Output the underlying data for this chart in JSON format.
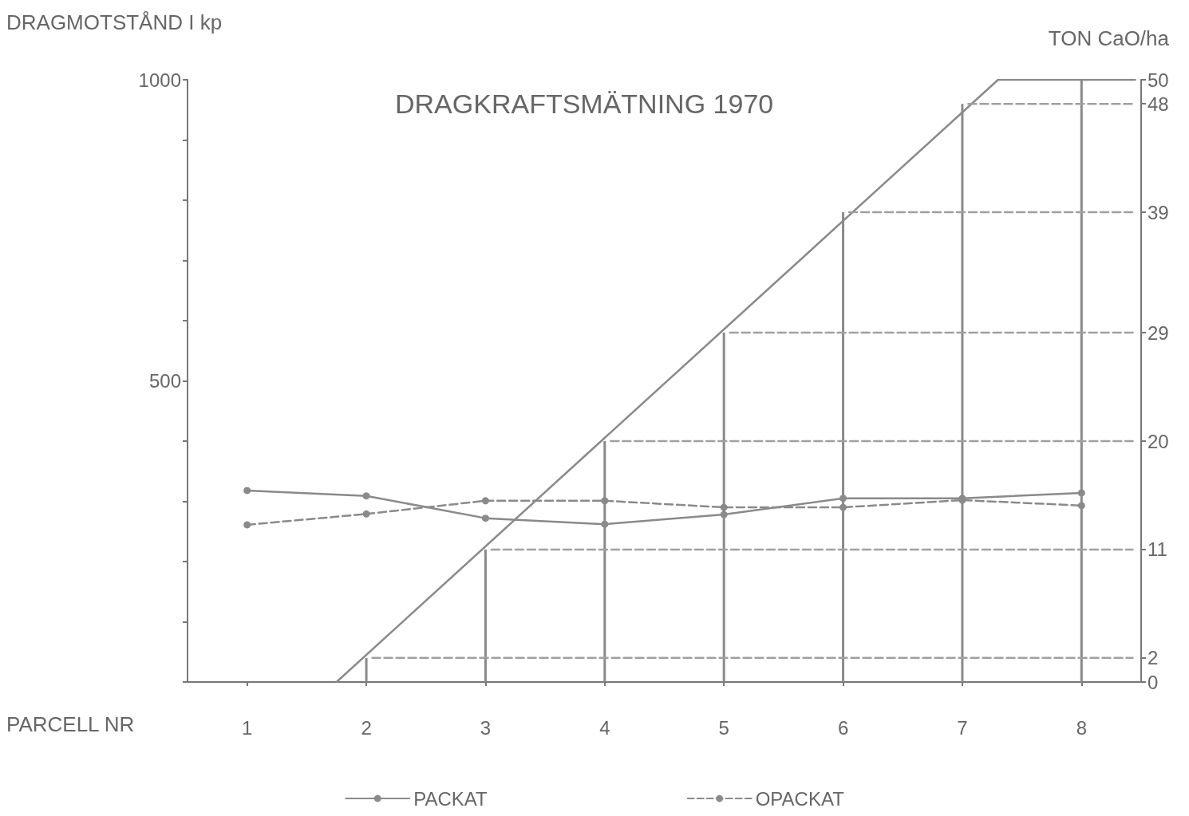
{
  "chart_data": {
    "type": "line",
    "title": "DRAGKRAFTSMÄTNING 1970",
    "ylabel": "DRAGMOTSTÅND I kp",
    "y2label": "TON CaO/ha",
    "xlabel": "PARCELL NR",
    "xlim": [
      0.5,
      8.5
    ],
    "xticks": [
      1,
      2,
      3,
      4,
      5,
      6,
      7,
      8
    ],
    "ylim": [
      0,
      1000
    ],
    "yticks": [
      {
        "value": 0,
        "label": null
      },
      {
        "value": 100,
        "label": null
      },
      {
        "value": 200,
        "label": null
      },
      {
        "value": 300,
        "label": null
      },
      {
        "value": 400,
        "label": null
      },
      500,
      {
        "value": 600,
        "label": null
      },
      {
        "value": 700,
        "label": null
      },
      {
        "value": 800,
        "label": null
      },
      {
        "value": 900,
        "label": null
      },
      1000
    ],
    "y2lim": [
      0,
      50
    ],
    "y2ticks": [
      0,
      2,
      11,
      20,
      29,
      39,
      48,
      50
    ],
    "grid": false,
    "legend": "bottom",
    "marker": "circle",
    "series": [
      {
        "name": "PACKAT",
        "color": "#8a8a8a",
        "line_style": "solid",
        "x": [
          1,
          2,
          3,
          4,
          5,
          6,
          7,
          8
        ],
        "values": [
          318,
          309,
          272,
          262,
          278,
          305,
          305,
          314
        ]
      },
      {
        "name": "OPACKAT",
        "color": "#8a8a8a",
        "line_style": "dashed",
        "x": [
          1,
          2,
          3,
          4,
          5,
          6,
          7,
          8
        ],
        "values": [
          261,
          279,
          301,
          301,
          290,
          290,
          302,
          293
        ]
      },
      {
        "type": "bar",
        "axis": "y2",
        "color": "#8a8a8a",
        "x": [
          2,
          3,
          4,
          5,
          6,
          7,
          8
        ],
        "values": [
          2,
          11,
          20,
          29,
          39,
          48,
          50
        ]
      },
      {
        "axis": "y2",
        "color": "#8a8a8a",
        "marker": "none",
        "line_style": "solid",
        "x": [
          1.75,
          7.3,
          8.45
        ],
        "values": [
          0,
          50,
          50
        ]
      },
      {
        "axis": "y2",
        "color": "#a0a0a0",
        "marker": "none",
        "line_style": "dashed",
        "x": [
          2.05,
          8.43
        ],
        "values": [
          2,
          2
        ]
      },
      {
        "axis": "y2",
        "color": "#a0a0a0",
        "marker": "none",
        "line_style": "dashed",
        "x": [
          3.05,
          8.43
        ],
        "values": [
          11,
          11
        ]
      },
      {
        "axis": "y2",
        "color": "#a0a0a0",
        "marker": "none",
        "line_style": "dashed",
        "x": [
          4.05,
          8.43
        ],
        "values": [
          20,
          20
        ]
      },
      {
        "axis": "y2",
        "color": "#a0a0a0",
        "marker": "none",
        "line_style": "dashed",
        "x": [
          5.05,
          8.43
        ],
        "values": [
          29,
          29
        ]
      },
      {
        "axis": "y2",
        "color": "#a0a0a0",
        "marker": "none",
        "line_style": "dashed",
        "x": [
          6.05,
          8.43
        ],
        "values": [
          39,
          39
        ]
      },
      {
        "axis": "y2",
        "color": "#a0a0a0",
        "marker": "none",
        "line_style": "dashed",
        "x": [
          7.05,
          8.43
        ],
        "values": [
          48,
          48
        ]
      }
    ]
  }
}
